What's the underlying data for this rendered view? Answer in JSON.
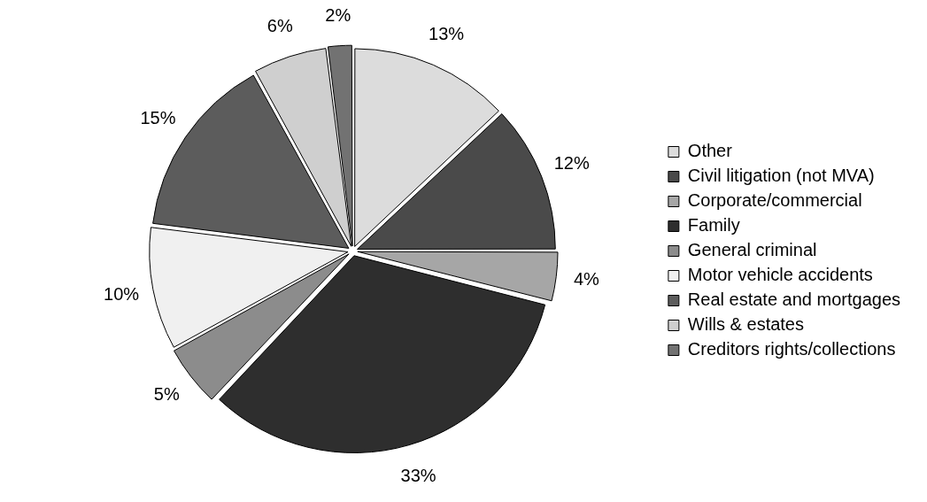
{
  "chart_data": {
    "type": "pie",
    "categories": [
      "Other",
      "Civil litigation (not MVA)",
      "Corporate/commercial",
      "Family",
      "General criminal",
      "Motor vehicle accidents",
      "Real estate and mortgages",
      "Wills & estates",
      "Creditors rights/collections"
    ],
    "values": [
      13,
      12,
      4,
      33,
      5,
      10,
      15,
      6,
      2
    ],
    "colors": [
      "#dcdcdc",
      "#4a4a4a",
      "#a6a6a6",
      "#2e2e2e",
      "#8c8c8c",
      "#f0f0f0",
      "#5c5c5c",
      "#cfcfcf",
      "#727272"
    ],
    "value_labels": [
      "13%",
      "12%",
      "4%",
      "33%",
      "5%",
      "10%",
      "15%",
      "6%",
      "2%"
    ],
    "legend": "right"
  }
}
